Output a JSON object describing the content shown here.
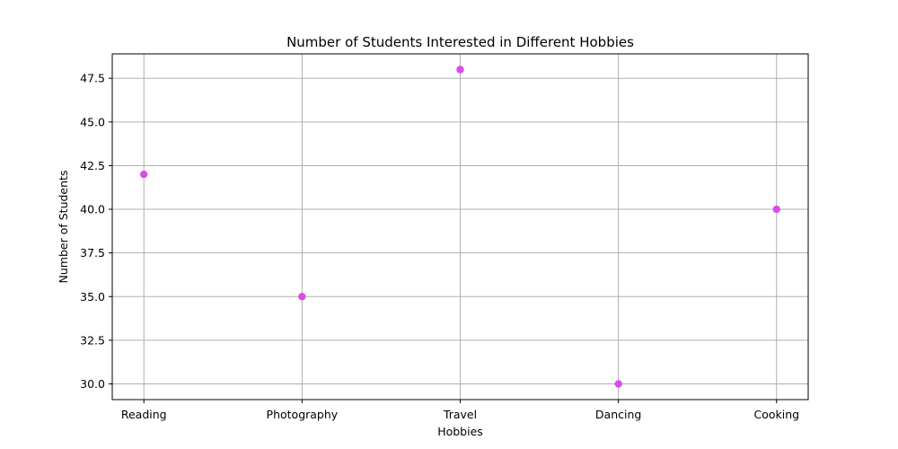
{
  "chart_data": {
    "type": "scatter",
    "title": "Number of Students Interested in Different Hobbies",
    "xlabel": "Hobbies",
    "ylabel": "Number of Students",
    "categories": [
      "Reading",
      "Photography",
      "Travel",
      "Dancing",
      "Cooking"
    ],
    "values": [
      42,
      35,
      48,
      30,
      40
    ],
    "ylim": [
      29.1,
      48.9
    ],
    "yticks": [
      "30.0",
      "32.5",
      "35.0",
      "37.5",
      "40.0",
      "42.5",
      "45.0",
      "47.5"
    ],
    "grid": true,
    "marker_color": "#d94ce8",
    "grid_color": "#b0b0b0"
  }
}
